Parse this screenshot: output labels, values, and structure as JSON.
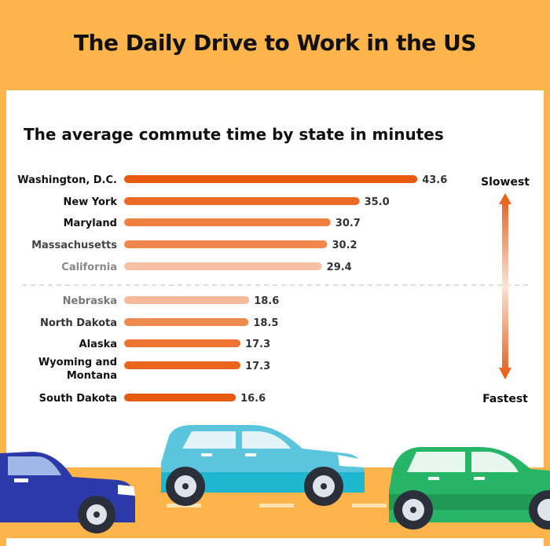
{
  "header": {
    "title": "The Daily Drive to Work in the US"
  },
  "chart_data": {
    "type": "bar",
    "orientation": "horizontal",
    "title": "The average commute time by state in minutes",
    "categories": [
      "Washington, D.C.",
      "New York",
      "Maryland",
      "Massachusetts",
      "California",
      "Nebraska",
      "North Dakota",
      "Alaska",
      "Wyoming and Montana",
      "South Dakota"
    ],
    "values": [
      43.6,
      35.0,
      30.7,
      30.2,
      29.4,
      18.6,
      18.5,
      17.3,
      17.3,
      16.6
    ],
    "value_labels": [
      "43.6",
      "35.0",
      "30.7",
      "30.2",
      "29.4",
      "18.6",
      "18.5",
      "17.3",
      "17.3",
      "16.6"
    ],
    "bar_colors": [
      "#E85A0F",
      "#EC6A25",
      "#EF8040",
      "#F0874D",
      "#F7BFA3",
      "#F6BA9B",
      "#EF8A4E",
      "#EC7430",
      "#E9651E",
      "#E55A0C"
    ],
    "label_colors": [
      "#111111",
      "#111111",
      "#111111",
      "#444444",
      "#888888",
      "#777777",
      "#333333",
      "#111111",
      "#111111",
      "#111111"
    ],
    "scale": {
      "top_label": "Slowest",
      "bottom_label": "Fastest"
    },
    "groups": [
      "slowest",
      "fastest"
    ],
    "grid": false
  }
}
